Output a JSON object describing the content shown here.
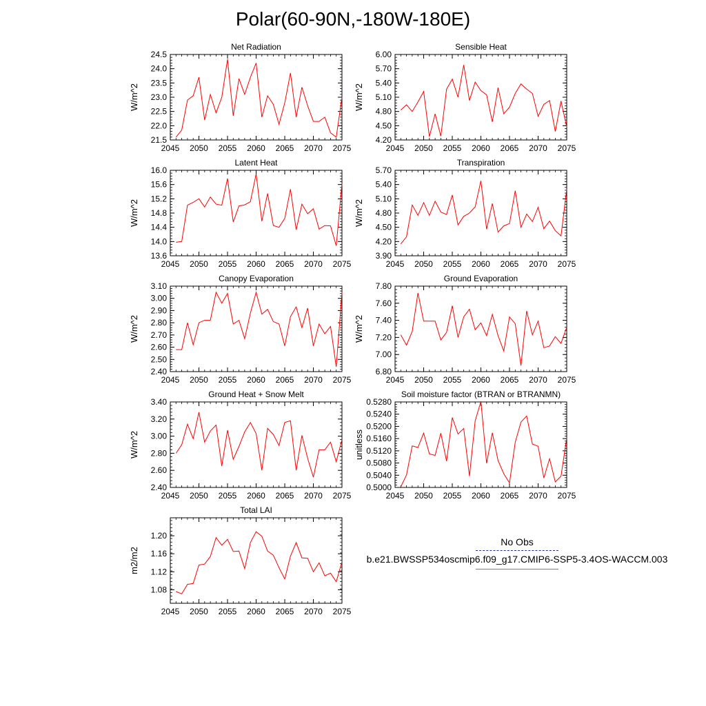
{
  "page": {
    "title": "Polar(60-90N,-180W-180E)"
  },
  "legend": {
    "obs_label": "No Obs",
    "obs_color": "#2a2a8c",
    "case_label": "b.e21.BWSSP534oscmip6.f09_g17.CMIP6-SSP5-3.4OS-WACCM.003",
    "case_color": "#ff0000"
  },
  "chart_data": [
    {
      "type": "line",
      "title": "Net Radiation",
      "ylabel": "W/m^2",
      "xlim": [
        2045,
        2075
      ],
      "ylim": [
        21.5,
        24.5
      ],
      "yticks": [
        "21.5",
        "22.0",
        "22.5",
        "23.0",
        "23.5",
        "24.0",
        "24.5"
      ],
      "xticks": [
        "2045",
        "2050",
        "2055",
        "2060",
        "2065",
        "2070",
        "2075"
      ],
      "x": [
        2046,
        2047,
        2048,
        2049,
        2050,
        2051,
        2052,
        2053,
        2054,
        2055,
        2056,
        2057,
        2058,
        2059,
        2060,
        2061,
        2062,
        2063,
        2064,
        2065,
        2066,
        2067,
        2068,
        2069,
        2070,
        2071,
        2072,
        2073,
        2074,
        2075
      ],
      "values": [
        21.6,
        21.85,
        22.9,
        23.05,
        23.7,
        22.2,
        23.1,
        22.45,
        23.0,
        24.33,
        22.35,
        23.65,
        23.1,
        23.7,
        24.2,
        22.3,
        23.05,
        22.75,
        22.05,
        22.8,
        23.85,
        22.3,
        23.35,
        22.7,
        22.15,
        22.15,
        22.3,
        21.75,
        21.6,
        23.0
      ]
    },
    {
      "type": "line",
      "title": "Sensible Heat",
      "ylabel": "W/m^2",
      "xlim": [
        2045,
        2075
      ],
      "ylim": [
        4.2,
        6.0
      ],
      "yticks": [
        "4.20",
        "4.50",
        "4.80",
        "5.10",
        "5.40",
        "5.70",
        "6.00"
      ],
      "xticks": [
        "2045",
        "2050",
        "2055",
        "2060",
        "2065",
        "2070",
        "2075"
      ],
      "x": [
        2046,
        2047,
        2048,
        2049,
        2050,
        2051,
        2052,
        2053,
        2054,
        2055,
        2056,
        2057,
        2058,
        2059,
        2060,
        2061,
        2062,
        2063,
        2064,
        2065,
        2066,
        2067,
        2068,
        2069,
        2070,
        2071,
        2072,
        2073,
        2074,
        2075
      ],
      "values": [
        4.83,
        4.94,
        4.8,
        5.0,
        5.22,
        4.27,
        4.75,
        4.28,
        5.27,
        5.48,
        5.1,
        5.78,
        5.03,
        5.42,
        5.24,
        5.15,
        4.58,
        5.3,
        4.75,
        4.89,
        5.18,
        5.38,
        5.27,
        5.18,
        4.7,
        4.95,
        5.03,
        4.38,
        5.02,
        4.47
      ]
    },
    {
      "type": "line",
      "title": "Latent Heat",
      "ylabel": "W/m^2",
      "xlim": [
        2045,
        2075
      ],
      "ylim": [
        13.6,
        16.0
      ],
      "yticks": [
        "13.6",
        "14.0",
        "14.4",
        "14.8",
        "15.2",
        "15.6",
        "16.0"
      ],
      "xticks": [
        "2045",
        "2050",
        "2055",
        "2060",
        "2065",
        "2070",
        "2075"
      ],
      "x": [
        2046,
        2047,
        2048,
        2049,
        2050,
        2051,
        2052,
        2053,
        2054,
        2055,
        2056,
        2057,
        2058,
        2059,
        2060,
        2061,
        2062,
        2063,
        2064,
        2065,
        2066,
        2067,
        2068,
        2069,
        2070,
        2071,
        2072,
        2073,
        2074,
        2075
      ],
      "values": [
        13.98,
        14.0,
        15.02,
        15.1,
        15.2,
        14.97,
        15.25,
        15.05,
        15.02,
        15.77,
        14.55,
        15.0,
        15.03,
        15.12,
        15.9,
        14.57,
        15.35,
        14.45,
        14.4,
        14.65,
        15.47,
        14.33,
        15.05,
        14.78,
        14.92,
        14.35,
        14.45,
        14.44,
        13.88,
        15.62
      ]
    },
    {
      "type": "line",
      "title": "Transpiration",
      "ylabel": "W/m^2",
      "xlim": [
        2045,
        2075
      ],
      "ylim": [
        3.9,
        5.7
      ],
      "yticks": [
        "3.90",
        "4.20",
        "4.50",
        "4.80",
        "5.10",
        "5.40",
        "5.70"
      ],
      "xticks": [
        "2045",
        "2050",
        "2055",
        "2060",
        "2065",
        "2070",
        "2075"
      ],
      "x": [
        2046,
        2047,
        2048,
        2049,
        2050,
        2051,
        2052,
        2053,
        2054,
        2055,
        2056,
        2057,
        2058,
        2059,
        2060,
        2061,
        2062,
        2063,
        2064,
        2065,
        2066,
        2067,
        2068,
        2069,
        2070,
        2071,
        2072,
        2073,
        2074,
        2075
      ],
      "values": [
        4.15,
        4.3,
        4.97,
        4.75,
        5.02,
        4.75,
        5.05,
        4.82,
        4.77,
        5.18,
        4.55,
        4.73,
        4.8,
        4.93,
        5.48,
        4.46,
        5.0,
        4.4,
        4.53,
        4.58,
        5.27,
        4.5,
        4.78,
        4.62,
        4.92,
        4.47,
        4.63,
        4.43,
        4.32,
        5.3
      ]
    },
    {
      "type": "line",
      "title": "Canopy Evaporation",
      "ylabel": "W/m^2",
      "xlim": [
        2045,
        2075
      ],
      "ylim": [
        2.4,
        3.1
      ],
      "yticks": [
        "2.40",
        "2.50",
        "2.60",
        "2.70",
        "2.80",
        "2.90",
        "3.00",
        "3.10"
      ],
      "xticks": [
        "2045",
        "2050",
        "2055",
        "2060",
        "2065",
        "2070",
        "2075"
      ],
      "x": [
        2046,
        2047,
        2048,
        2049,
        2050,
        2051,
        2052,
        2053,
        2054,
        2055,
        2056,
        2057,
        2058,
        2059,
        2060,
        2061,
        2062,
        2063,
        2064,
        2065,
        2066,
        2067,
        2068,
        2069,
        2070,
        2071,
        2072,
        2073,
        2074,
        2075
      ],
      "values": [
        2.58,
        2.58,
        2.8,
        2.62,
        2.8,
        2.82,
        2.82,
        3.05,
        2.96,
        3.04,
        2.79,
        2.82,
        2.67,
        2.88,
        3.05,
        2.87,
        2.91,
        2.81,
        2.79,
        2.61,
        2.85,
        2.93,
        2.76,
        2.92,
        2.61,
        2.79,
        2.71,
        2.77,
        2.44,
        3.05
      ]
    },
    {
      "type": "line",
      "title": "Ground Evaporation",
      "ylabel": "W/m^2",
      "xlim": [
        2045,
        2075
      ],
      "ylim": [
        6.8,
        7.8
      ],
      "yticks": [
        "6.80",
        "7.00",
        "7.20",
        "7.40",
        "7.60",
        "7.80"
      ],
      "xticks": [
        "2045",
        "2050",
        "2055",
        "2060",
        "2065",
        "2070",
        "2075"
      ],
      "x": [
        2046,
        2047,
        2048,
        2049,
        2050,
        2051,
        2052,
        2053,
        2054,
        2055,
        2056,
        2057,
        2058,
        2059,
        2060,
        2061,
        2062,
        2063,
        2064,
        2065,
        2066,
        2067,
        2068,
        2069,
        2070,
        2071,
        2072,
        2073,
        2074,
        2075
      ],
      "values": [
        7.23,
        7.11,
        7.27,
        7.72,
        7.39,
        7.39,
        7.39,
        7.17,
        7.26,
        7.57,
        7.2,
        7.44,
        7.53,
        7.29,
        7.37,
        7.22,
        7.47,
        7.22,
        7.04,
        7.44,
        7.36,
        6.87,
        7.51,
        7.23,
        7.39,
        7.08,
        7.1,
        7.21,
        7.13,
        7.32
      ]
    },
    {
      "type": "line",
      "title": "Ground Heat + Snow Melt",
      "ylabel": "W/m^2",
      "xlim": [
        2045,
        2075
      ],
      "ylim": [
        2.4,
        3.4
      ],
      "yticks": [
        "2.40",
        "2.60",
        "2.80",
        "3.00",
        "3.20",
        "3.40"
      ],
      "xticks": [
        "2045",
        "2050",
        "2055",
        "2060",
        "2065",
        "2070",
        "2075"
      ],
      "x": [
        2046,
        2047,
        2048,
        2049,
        2050,
        2051,
        2052,
        2053,
        2054,
        2055,
        2056,
        2057,
        2058,
        2059,
        2060,
        2061,
        2062,
        2063,
        2064,
        2065,
        2066,
        2067,
        2068,
        2069,
        2070,
        2071,
        2072,
        2073,
        2074,
        2075
      ],
      "values": [
        2.8,
        2.9,
        3.14,
        2.97,
        3.28,
        2.93,
        3.06,
        3.13,
        2.65,
        3.07,
        2.73,
        2.88,
        3.05,
        3.16,
        3.03,
        2.6,
        3.09,
        3.02,
        2.89,
        3.16,
        3.18,
        2.6,
        3.01,
        2.74,
        2.52,
        2.84,
        2.84,
        2.93,
        2.7,
        2.96
      ]
    },
    {
      "type": "line",
      "title": "Soil moisture factor (BTRAN or BTRANMN)",
      "ylabel": "unitless",
      "xlim": [
        2045,
        2075
      ],
      "ylim": [
        0.5,
        0.528
      ],
      "yticks": [
        "0.5000",
        "0.5040",
        "0.5080",
        "0.5120",
        "0.5160",
        "0.5200",
        "0.5240",
        "0.5280"
      ],
      "xticks": [
        "2045",
        "2050",
        "2055",
        "2060",
        "2065",
        "2070",
        "2075"
      ],
      "x": [
        2046,
        2047,
        2048,
        2049,
        2050,
        2051,
        2052,
        2053,
        2054,
        2055,
        2056,
        2057,
        2058,
        2059,
        2060,
        2061,
        2062,
        2063,
        2064,
        2065,
        2066,
        2067,
        2068,
        2069,
        2070,
        2071,
        2072,
        2073,
        2074,
        2075
      ],
      "values": [
        0.5002,
        0.5041,
        0.5136,
        0.5131,
        0.5178,
        0.511,
        0.5105,
        0.5178,
        0.5086,
        0.5229,
        0.5175,
        0.5193,
        0.5037,
        0.5218,
        0.5282,
        0.5079,
        0.5179,
        0.5088,
        0.5045,
        0.5015,
        0.5148,
        0.5214,
        0.5234,
        0.5142,
        0.5135,
        0.5031,
        0.5094,
        0.5018,
        0.5037,
        0.5162
      ]
    },
    {
      "type": "line",
      "title": "Total LAI",
      "ylabel": "m2/m2",
      "xlim": [
        2045,
        2075
      ],
      "ylim": [
        1.05,
        1.24
      ],
      "yticks": [
        "1.08",
        "1.12",
        "1.16",
        "1.20"
      ],
      "xticks": [
        "2045",
        "2050",
        "2055",
        "2060",
        "2065",
        "2070",
        "2075"
      ],
      "x": [
        2046,
        2047,
        2048,
        2049,
        2050,
        2051,
        2052,
        2053,
        2054,
        2055,
        2056,
        2057,
        2058,
        2059,
        2060,
        2061,
        2062,
        2063,
        2064,
        2065,
        2066,
        2067,
        2068,
        2069,
        2070,
        2071,
        2072,
        2073,
        2074,
        2075
      ],
      "values": [
        1.076,
        1.071,
        1.092,
        1.094,
        1.135,
        1.137,
        1.154,
        1.196,
        1.179,
        1.192,
        1.165,
        1.166,
        1.127,
        1.185,
        1.209,
        1.199,
        1.166,
        1.157,
        1.129,
        1.104,
        1.155,
        1.185,
        1.151,
        1.15,
        1.12,
        1.14,
        1.111,
        1.117,
        1.098,
        1.142
      ]
    }
  ]
}
